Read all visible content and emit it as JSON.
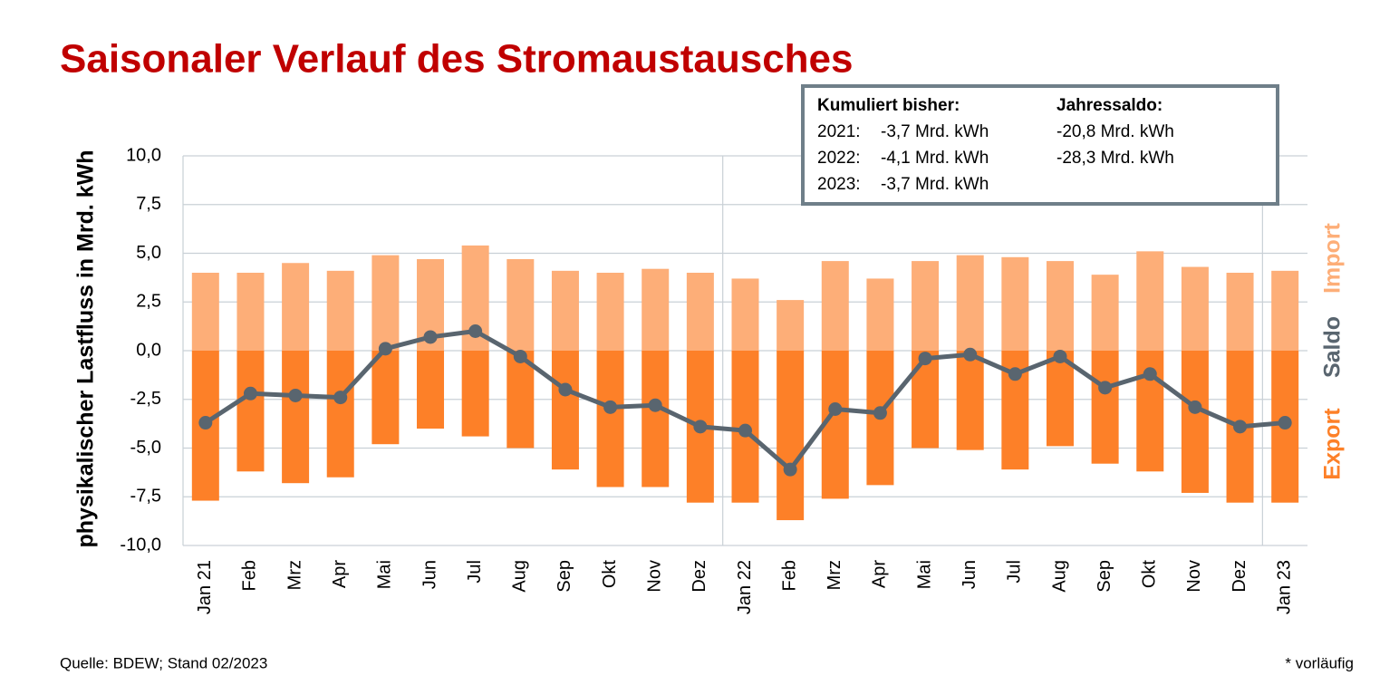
{
  "chart_data": {
    "type": "bar",
    "title": "Saisonaler Verlauf des Stromaustausches",
    "y_label": "physikalischer Lastfluss in Mrd. kWh",
    "source": "Quelle: BDEW; Stand 02/2023",
    "note": "* vorläufig",
    "categories": [
      "Jan 21",
      "Feb",
      "Mrz",
      "Apr",
      "Mai",
      "Jun",
      "Jul",
      "Aug",
      "Sep",
      "Okt",
      "Nov",
      "Dez",
      "Jan 22",
      "Feb",
      "Mrz",
      "Apr",
      "Mai",
      "Jun",
      "Jul",
      "Aug",
      "Sep",
      "Okt",
      "Nov",
      "Dez",
      "Jan 23"
    ],
    "series": [
      {
        "name": "Import",
        "type": "bar",
        "color": "#fdae78",
        "values": [
          4.0,
          4.0,
          4.5,
          4.1,
          4.9,
          4.7,
          5.4,
          4.7,
          4.1,
          4.0,
          4.2,
          4.0,
          3.7,
          2.6,
          4.6,
          3.7,
          4.6,
          4.9,
          4.8,
          4.6,
          3.9,
          5.1,
          4.3,
          4.0,
          4.1
        ]
      },
      {
        "name": "Saldo",
        "type": "line",
        "color": "#59656f",
        "values": [
          -3.7,
          -2.2,
          -2.3,
          -2.4,
          0.1,
          0.7,
          1.0,
          -0.3,
          -2.0,
          -2.9,
          -2.8,
          -3.9,
          -4.1,
          -6.1,
          -3.0,
          -3.2,
          -0.4,
          -0.2,
          -1.2,
          -0.3,
          -1.9,
          -1.2,
          -2.9,
          -3.9,
          -3.7
        ]
      },
      {
        "name": "Export",
        "type": "bar",
        "color": "#fd8028",
        "values": [
          -7.7,
          -6.2,
          -6.8,
          -6.5,
          -4.8,
          -4.0,
          -4.4,
          -5.0,
          -6.1,
          -7.0,
          -7.0,
          -7.8,
          -7.8,
          -8.7,
          -7.6,
          -6.9,
          -5.0,
          -5.1,
          -6.1,
          -4.9,
          -5.8,
          -6.2,
          -7.3,
          -7.8,
          -7.8
        ]
      }
    ],
    "ylim": [
      -10,
      10
    ],
    "yticks": [
      {
        "value": -10,
        "label": "-10,0"
      },
      {
        "value": -7.5,
        "label": "-7,5"
      },
      {
        "value": -5,
        "label": "-5,0"
      },
      {
        "value": -2.5,
        "label": "-2,5"
      },
      {
        "value": 0,
        "label": "0,0"
      },
      {
        "value": 2.5,
        "label": "2,5"
      },
      {
        "value": 5,
        "label": "5,0"
      },
      {
        "value": 7.5,
        "label": "7,5"
      },
      {
        "value": 10,
        "label": "10,0"
      }
    ],
    "grid": true,
    "legend": "right",
    "info_box": {
      "headers": [
        "Kumuliert bisher:",
        "Jahressaldo:"
      ],
      "rows": [
        [
          "2021:",
          "-3,7 Mrd. kWh",
          "-20,8 Mrd. kWh"
        ],
        [
          "2022:",
          "-4,1 Mrd. kWh",
          "-28,3 Mrd. kWh"
        ],
        [
          "2023:",
          "-3,7 Mrd. kWh"
        ]
      ]
    }
  }
}
